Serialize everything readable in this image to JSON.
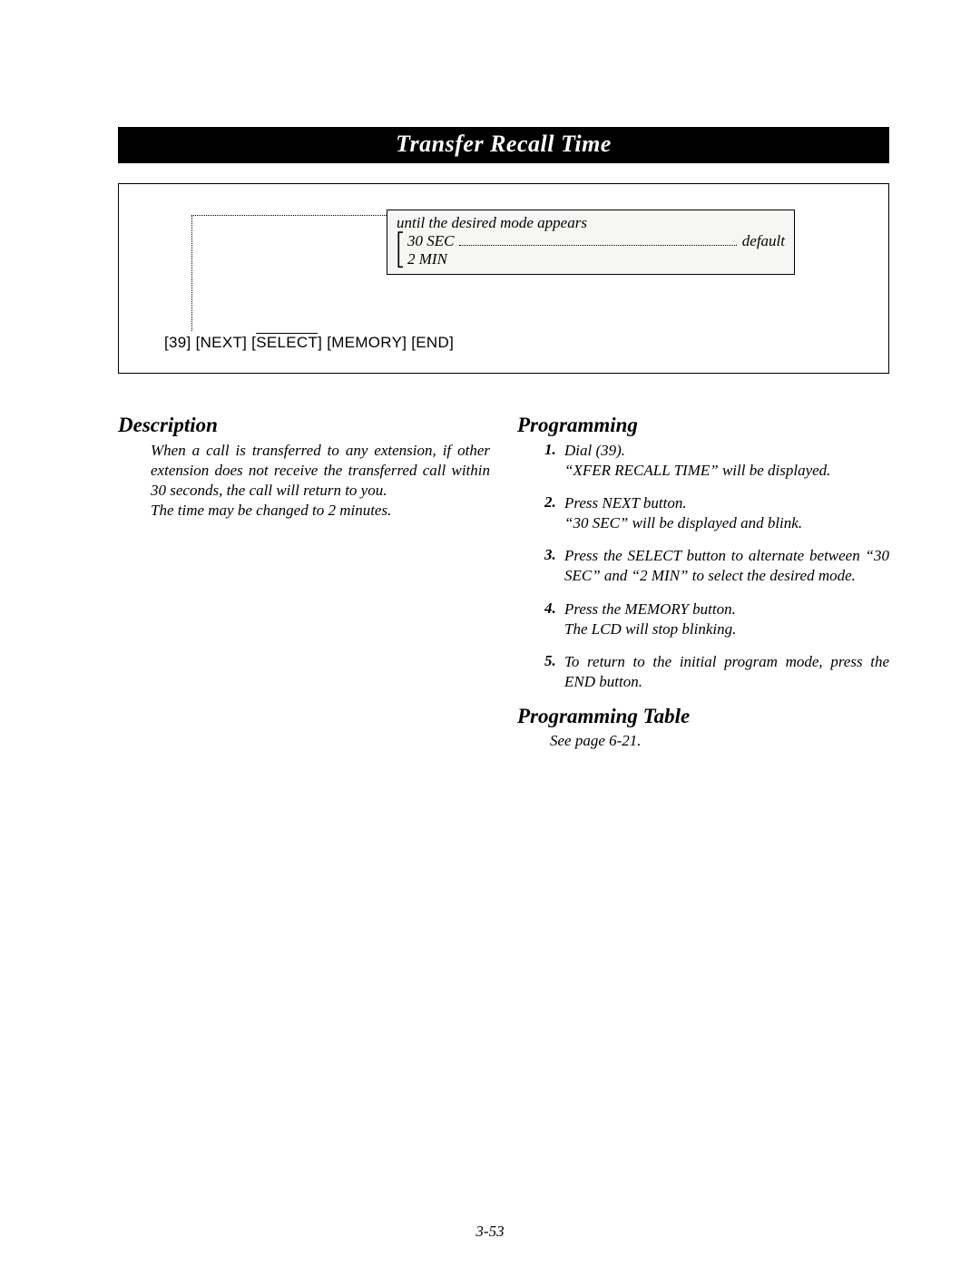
{
  "title": "Transfer Recall Time",
  "mode_box": {
    "caption": "until the desired mode appears",
    "opt1": "30 SEC",
    "opt1_note": "default",
    "opt2": "2 MIN"
  },
  "keystrokes": {
    "p1": "[39] [NEXT] [",
    "sel": "SELECT",
    "p2": "] [MEMORY] [END]"
  },
  "description": {
    "heading": "Description",
    "body1": "When a call is transferred to any extension, if other extension does not receive the transferred call within 30 seconds, the call will return to you.",
    "body2": "The time may be changed to 2 minutes."
  },
  "programming": {
    "heading": "Programming",
    "steps": [
      {
        "n": "1.",
        "text": "Dial (39).\n“XFER RECALL TIME” will be displayed."
      },
      {
        "n": "2.",
        "text": "Press NEXT button.\n“30 SEC” will be displayed and blink."
      },
      {
        "n": "3.",
        "text": "Press the SELECT button to alternate between “30 SEC” and “2 MIN” to select the desired mode."
      },
      {
        "n": "4.",
        "text": "Press the MEMORY button.\nThe LCD will stop blinking."
      },
      {
        "n": "5.",
        "text": "To return to the initial program mode, press the END button."
      }
    ]
  },
  "programming_table": {
    "heading": "Programming Table",
    "body": "See page 6-21."
  },
  "page_number": "3-53"
}
